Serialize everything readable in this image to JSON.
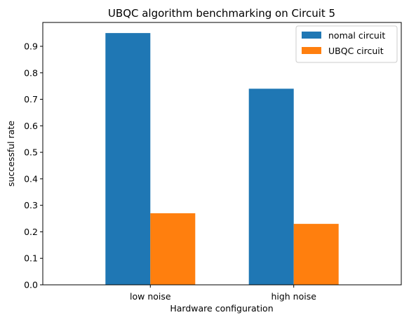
{
  "chart_data": {
    "type": "bar",
    "title": "UBQC algorithm benchmarking on Circuit 5",
    "xlabel": "Hardware configuration",
    "ylabel": "successful rate",
    "categories": [
      "low noise",
      "high noise"
    ],
    "series": [
      {
        "name": "nomal circuit",
        "values": [
          0.95,
          0.74
        ],
        "color": "#1f77b4"
      },
      {
        "name": "UBQC circuit",
        "values": [
          0.27,
          0.23
        ],
        "color": "#ff7f0e"
      }
    ],
    "ylim": [
      0,
      0.99
    ],
    "yticks": [
      "0.0",
      "0.1",
      "0.2",
      "0.3",
      "0.4",
      "0.5",
      "0.6",
      "0.7",
      "0.8",
      "0.9"
    ],
    "grid": false,
    "legend_position": "top-right"
  }
}
